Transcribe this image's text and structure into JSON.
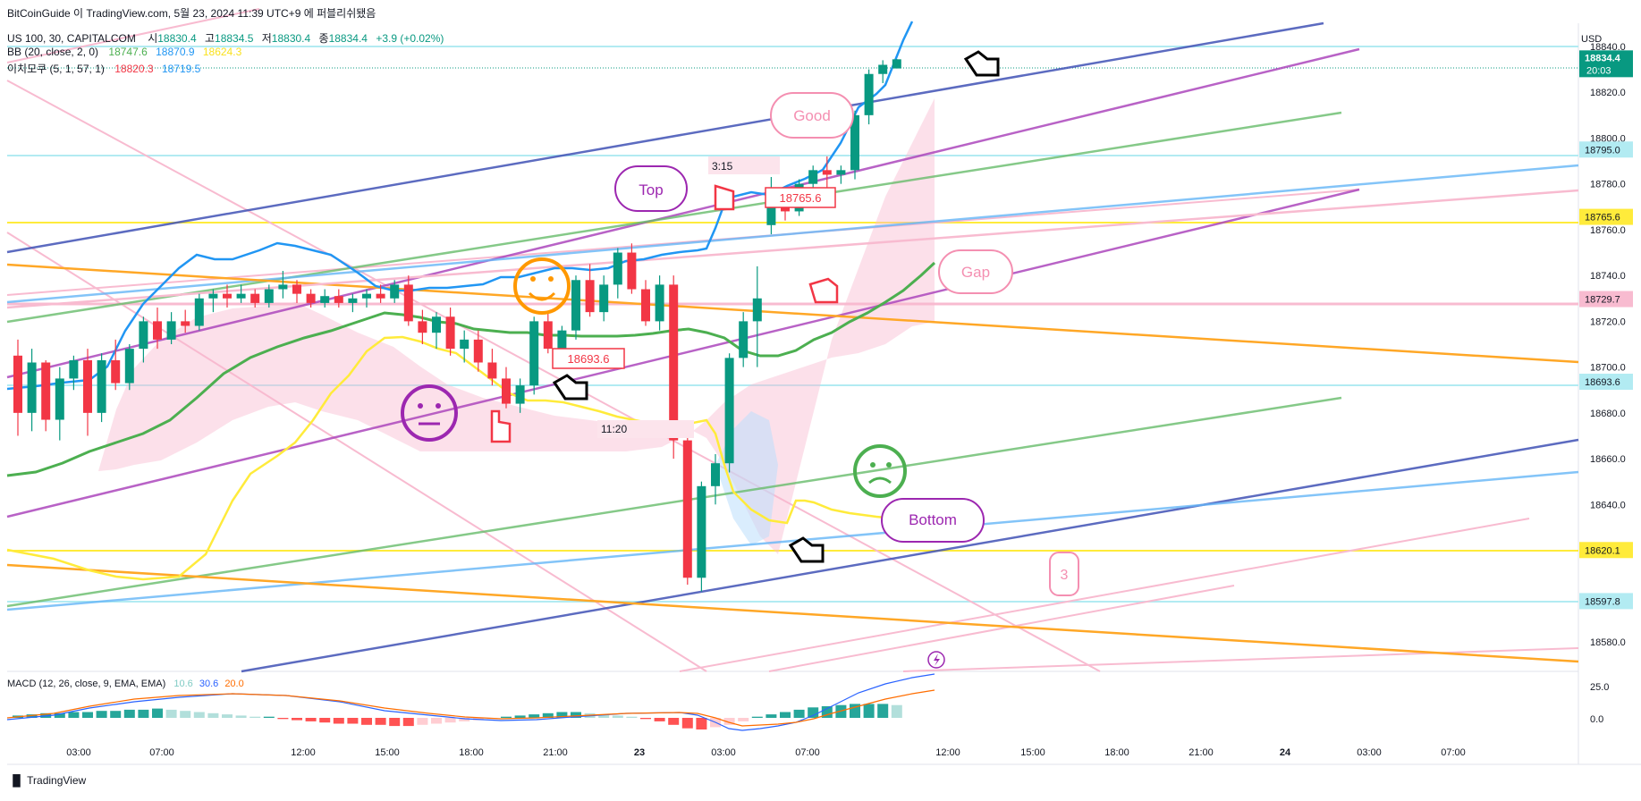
{
  "credit": "BitCoinGuide 이 TradingView.com, 5월 23, 2024 11:39 UTC+9 에 퍼블리쉬됐음",
  "header": {
    "symbol_line": {
      "symbol": "US 100, 30, CAPITALCOM",
      "o_label": "시",
      "o": "18830.4",
      "h_label": "고",
      "h": "18834.5",
      "l_label": "저",
      "l": "18830.4",
      "c_label": "종",
      "c": "18834.4",
      "change": "+3.9 (+0.02%)"
    },
    "bb_line": {
      "label": "BB (20, close, 2, 0)",
      "basis": "18747.6",
      "upper": "18870.9",
      "lower": "18624.3"
    },
    "ichimoku_line": {
      "label": "이치모쿠 (5, 1, 57, 1)",
      "v1": "18820.3",
      "v2": "18719.5"
    }
  },
  "price_axis": {
    "unit": "USD",
    "current_price": "18834.4",
    "countdown": "20:03",
    "ticks": [
      "18840.0",
      "18820.0",
      "18800.0",
      "18780.0",
      "18760.0",
      "18740.0",
      "18720.0",
      "18700.0",
      "18680.0",
      "18660.0",
      "18640.0",
      "18620.0",
      "18600.0",
      "18580.0"
    ],
    "levels": [
      {
        "price": 18795.0,
        "label": "18795.0",
        "color": "#b2ebf2",
        "text": "#131722"
      },
      {
        "price": 18765.6,
        "label": "18765.6",
        "color": "#ffeb3b",
        "text": "#131722"
      },
      {
        "price": 18729.7,
        "label": "18729.7",
        "color": "#f8bbd0",
        "text": "#131722"
      },
      {
        "price": 18693.6,
        "label": "18693.6",
        "color": "#b2ebf2",
        "text": "#131722"
      },
      {
        "price": 18620.1,
        "label": "18620.1",
        "color": "#ffeb3b",
        "text": "#131722"
      },
      {
        "price": 18597.8,
        "label": "18597.8",
        "color": "#b2ebf2",
        "text": "#131722"
      }
    ]
  },
  "time_axis": {
    "ticks": [
      "03:00",
      "07:00",
      "12:00",
      "15:00",
      "18:00",
      "21:00",
      "23",
      "03:00",
      "07:00",
      "12:00",
      "15:00",
      "18:00",
      "21:00",
      "24",
      "03:00",
      "07:00"
    ]
  },
  "macd": {
    "label": "MACD (12, 26, close, 9, EMA, EMA)",
    "hist": "10.6",
    "macd": "30.6",
    "signal": "20.0",
    "ticks": [
      "25.0",
      "0.0"
    ]
  },
  "annotations": {
    "top": "Top",
    "good": "Good",
    "gap": "Gap",
    "bottom": "Bottom",
    "three": "3",
    "label_18693": "18693.6",
    "label_18765": "18765.6",
    "time_315": "3:15",
    "time_1120": "11:20"
  },
  "footer": "TradingView",
  "colors": {
    "up": "#089981",
    "down": "#f23645",
    "blue": "#2196f3",
    "green": "#4caf50",
    "yellow": "#ffeb3b",
    "macd_line": "#2962ff",
    "signal_line": "#ff6d00"
  },
  "chart_data": {
    "type": "candlestick",
    "title": "",
    "ylim": [
      18570,
      18850
    ],
    "candles": [
      [
        18705,
        18712,
        18670,
        18680
      ],
      [
        18680,
        18708,
        18672,
        18702
      ],
      [
        18702,
        18703,
        18672,
        18677
      ],
      [
        18677,
        18700,
        18668,
        18695
      ],
      [
        18695,
        18705,
        18690,
        18703
      ],
      [
        18703,
        18708,
        18670,
        18680
      ],
      [
        18680,
        18706,
        18676,
        18703
      ],
      [
        18703,
        18712,
        18690,
        18693
      ],
      [
        18693,
        18710,
        18690,
        18708
      ],
      [
        18708,
        18722,
        18702,
        18720
      ],
      [
        18720,
        18726,
        18708,
        18712
      ],
      [
        18712,
        18724,
        18710,
        18720
      ],
      [
        18720,
        18725,
        18715,
        18718
      ],
      [
        18718,
        18732,
        18716,
        18730
      ],
      [
        18730,
        18734,
        18724,
        18732
      ],
      [
        18732,
        18736,
        18726,
        18730
      ],
      [
        18730,
        18736,
        18728,
        18732
      ],
      [
        18732,
        18734,
        18726,
        18728
      ],
      [
        18728,
        18736,
        18726,
        18734
      ],
      [
        18734,
        18742,
        18730,
        18736
      ],
      [
        18736,
        18738,
        18728,
        18732
      ],
      [
        18732,
        18734,
        18726,
        18728
      ],
      [
        18728,
        18734,
        18726,
        18731
      ],
      [
        18731,
        18734,
        18726,
        18728
      ],
      [
        18728,
        18732,
        18724,
        18730
      ],
      [
        18730,
        18734,
        18726,
        18732
      ],
      [
        18732,
        18736,
        18728,
        18730
      ],
      [
        18730,
        18738,
        18728,
        18736
      ],
      [
        18736,
        18740,
        18718,
        18720
      ],
      [
        18720,
        18725,
        18710,
        18715
      ],
      [
        18715,
        18724,
        18708,
        18722
      ],
      [
        18722,
        18726,
        18705,
        18708
      ],
      [
        18708,
        18716,
        18702,
        18712
      ],
      [
        18712,
        18716,
        18698,
        18702
      ],
      [
        18702,
        18708,
        18692,
        18695
      ],
      [
        18695,
        18700,
        18682,
        18684
      ],
      [
        18684,
        18695,
        18680,
        18692
      ],
      [
        18692,
        18722,
        18688,
        18720
      ],
      [
        18720,
        18724,
        18706,
        18708
      ],
      [
        18708,
        18718,
        18704,
        18716
      ],
      [
        18716,
        18740,
        18712,
        18738
      ],
      [
        18738,
        18745,
        18722,
        18724
      ],
      [
        18724,
        18740,
        18720,
        18736
      ],
      [
        18736,
        18752,
        18730,
        18750
      ],
      [
        18750,
        18754,
        18732,
        18734
      ],
      [
        18734,
        18738,
        18718,
        18720
      ],
      [
        18720,
        18740,
        18716,
        18736
      ],
      [
        18736,
        18740,
        18660,
        18668
      ],
      [
        18668,
        18672,
        18605,
        18608
      ],
      [
        18608,
        18650,
        18602,
        18648
      ],
      [
        18648,
        18662,
        18640,
        18658
      ],
      [
        18658,
        18706,
        18654,
        18704
      ],
      [
        18704,
        18724,
        18700,
        18720
      ],
      [
        18720,
        18744,
        18700,
        18730
      ],
      [
        18762,
        18783,
        18758,
        18770
      ],
      [
        18770,
        18776,
        18764,
        18768
      ],
      [
        18768,
        18782,
        18766,
        18780
      ],
      [
        18780,
        18788,
        18776,
        18786
      ],
      [
        18786,
        18792,
        18778,
        18784
      ],
      [
        18784,
        18788,
        18780,
        18786
      ],
      [
        18786,
        18812,
        18782,
        18810
      ],
      [
        18810,
        18830,
        18806,
        18828
      ],
      [
        18828,
        18834,
        18824,
        18832
      ],
      [
        18830.4,
        18834.5,
        18830.4,
        18834.4
      ]
    ]
  }
}
